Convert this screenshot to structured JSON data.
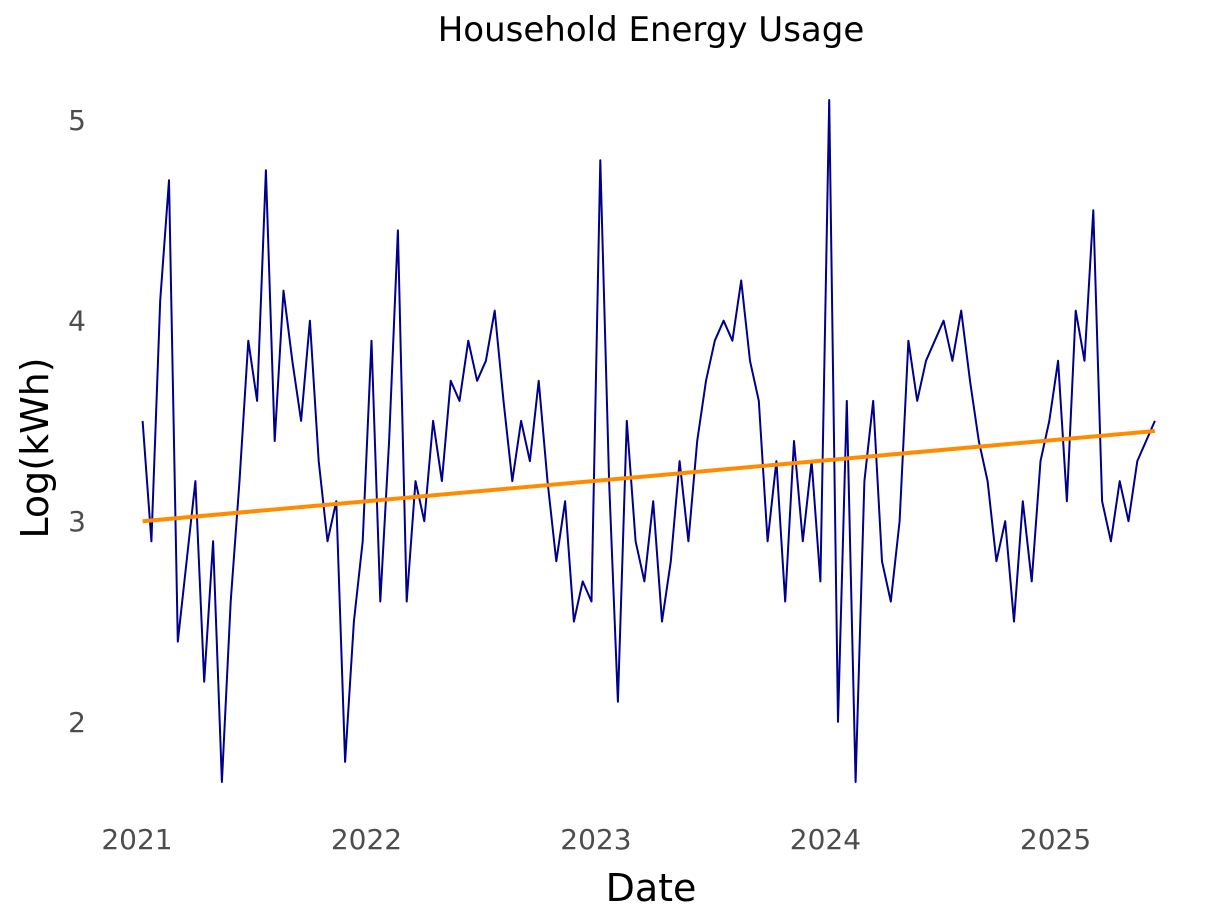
{
  "chart_data": {
    "type": "line",
    "title": "Household Energy Usage",
    "xlabel": "Date",
    "ylabel": "Log(kWh)",
    "x_ticks": [
      "2021",
      "2022",
      "2023",
      "2024",
      "2025"
    ],
    "y_ticks": [
      "2",
      "3",
      "4",
      "5"
    ],
    "xlim": [
      "2020-12-05",
      "2025-07-10"
    ],
    "ylim": [
      1.65,
      5.15
    ],
    "grid": false,
    "legend": "none",
    "colors": {
      "series": "#00008B",
      "trend": "#FF8C00"
    },
    "series": [
      {
        "role": "observed",
        "x": [
          "2021-01-10",
          "2021-01-24",
          "2021-02-07",
          "2021-02-21",
          "2021-03-07",
          "2021-03-21",
          "2021-04-04",
          "2021-04-18",
          "2021-05-02",
          "2021-05-16",
          "2021-05-30",
          "2021-06-13",
          "2021-06-27",
          "2021-07-11",
          "2021-07-25",
          "2021-08-08",
          "2021-08-22",
          "2021-09-05",
          "2021-09-19",
          "2021-10-03",
          "2021-10-17",
          "2021-10-31",
          "2021-11-14",
          "2021-11-28",
          "2021-12-12",
          "2021-12-26",
          "2022-01-09",
          "2022-01-23",
          "2022-02-06",
          "2022-02-20",
          "2022-03-06",
          "2022-03-20",
          "2022-04-03",
          "2022-04-17",
          "2022-05-01",
          "2022-05-15",
          "2022-05-29",
          "2022-06-12",
          "2022-06-26",
          "2022-07-10",
          "2022-07-24",
          "2022-08-07",
          "2022-08-21",
          "2022-09-04",
          "2022-09-18",
          "2022-10-02",
          "2022-10-16",
          "2022-10-30",
          "2022-11-13",
          "2022-11-27",
          "2022-12-11",
          "2022-12-25",
          "2023-01-08",
          "2023-01-22",
          "2023-02-05",
          "2023-02-19",
          "2023-03-05",
          "2023-03-19",
          "2023-04-02",
          "2023-04-16",
          "2023-04-30",
          "2023-05-14",
          "2023-05-28",
          "2023-06-11",
          "2023-06-25",
          "2023-07-09",
          "2023-07-23",
          "2023-08-06",
          "2023-08-20",
          "2023-09-03",
          "2023-09-17",
          "2023-10-01",
          "2023-10-15",
          "2023-10-29",
          "2023-11-12",
          "2023-11-26",
          "2023-12-10",
          "2023-12-24",
          "2024-01-07",
          "2024-01-21",
          "2024-02-04",
          "2024-02-18",
          "2024-03-03",
          "2024-03-17",
          "2024-03-31",
          "2024-04-14",
          "2024-04-28",
          "2024-05-12",
          "2024-05-26",
          "2024-06-09",
          "2024-06-23",
          "2024-07-07",
          "2024-07-21",
          "2024-08-04",
          "2024-08-18",
          "2024-09-01",
          "2024-09-15",
          "2024-09-29",
          "2024-10-13",
          "2024-10-27",
          "2024-11-10",
          "2024-11-24",
          "2024-12-08",
          "2024-12-22",
          "2025-01-05",
          "2025-01-19",
          "2025-02-02",
          "2025-02-16",
          "2025-03-02",
          "2025-03-16",
          "2025-03-30",
          "2025-04-13",
          "2025-04-27",
          "2025-05-11",
          "2025-05-25",
          "2025-06-08"
        ],
        "y": [
          3.5,
          2.9,
          4.1,
          4.7,
          2.4,
          2.8,
          3.2,
          2.2,
          2.9,
          1.7,
          2.6,
          3.2,
          3.9,
          3.6,
          4.75,
          3.4,
          4.15,
          3.8,
          3.5,
          4.0,
          3.3,
          2.9,
          3.1,
          1.8,
          2.5,
          2.9,
          3.9,
          2.6,
          3.4,
          4.45,
          2.6,
          3.2,
          3.0,
          3.5,
          3.2,
          3.7,
          3.6,
          3.9,
          3.7,
          3.8,
          4.05,
          3.6,
          3.2,
          3.5,
          3.3,
          3.7,
          3.2,
          2.8,
          3.1,
          2.5,
          2.7,
          2.6,
          4.8,
          3.2,
          2.1,
          3.5,
          2.9,
          2.7,
          3.1,
          2.5,
          2.8,
          3.3,
          2.9,
          3.4,
          3.7,
          3.9,
          4.0,
          3.9,
          4.2,
          3.8,
          3.6,
          2.9,
          3.3,
          2.6,
          3.4,
          2.9,
          3.3,
          2.7,
          5.1,
          2.0,
          3.6,
          1.7,
          3.2,
          3.6,
          2.8,
          2.6,
          3.0,
          3.9,
          3.6,
          3.8,
          3.9,
          4.0,
          3.8,
          4.05,
          3.7,
          3.4,
          3.2,
          2.8,
          3.0,
          2.5,
          3.1,
          2.7,
          3.3,
          3.5,
          3.8,
          3.1,
          4.05,
          3.8,
          4.55,
          3.1,
          2.9,
          3.2,
          3.0,
          3.3,
          3.4,
          3.5
        ]
      },
      {
        "role": "trend",
        "x": [
          "2021-01-10",
          "2025-06-08"
        ],
        "y": [
          3.0,
          3.45
        ]
      }
    ]
  }
}
